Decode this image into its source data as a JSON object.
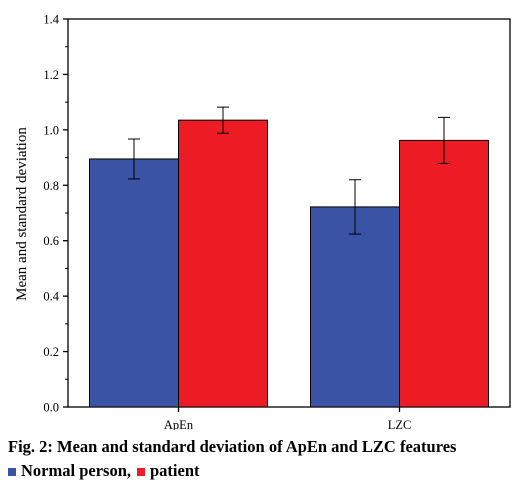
{
  "chart_data": {
    "type": "bar",
    "categories": [
      "ApEn",
      "LZC"
    ],
    "series": [
      {
        "name": "Normal person",
        "values": [
          0.895,
          0.722
        ],
        "errors": [
          0.072,
          0.098
        ],
        "color": "#3a53a4"
      },
      {
        "name": "patient",
        "values": [
          1.035,
          0.962
        ],
        "errors": [
          0.047,
          0.083
        ],
        "color": "#ed1c24"
      }
    ],
    "ylabel": "Mean and standard deviation",
    "xlabel": "",
    "ylim": [
      0.0,
      1.4
    ],
    "yticks": [
      "0.0",
      "0.2",
      "0.4",
      "0.6",
      "0.8",
      "1.0",
      "1.2",
      "1.4"
    ],
    "grid": false,
    "legend_placement": "below caption"
  },
  "caption": "Fig. 2: Mean and standard deviation of ApEn and LZC features",
  "legend": {
    "items": [
      {
        "label": "Normal person,",
        "color": "#3a53a4"
      },
      {
        "label": "patient",
        "color": "#ed1c24"
      }
    ]
  }
}
